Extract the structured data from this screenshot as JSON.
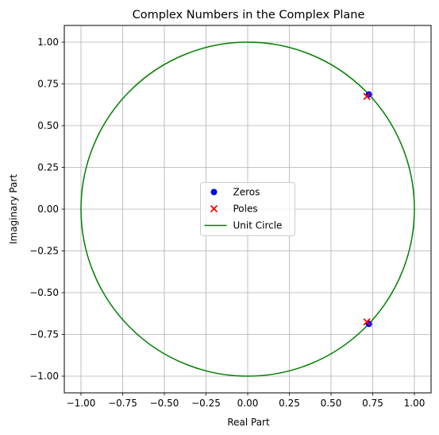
{
  "chart_data": {
    "type": "scatter",
    "title": "Complex Numbers in the Complex Plane",
    "xlabel": "Real Part",
    "ylabel": "Imaginary Part",
    "xlim": [
      -1.1,
      1.1
    ],
    "ylim": [
      -1.1,
      1.1
    ],
    "xticks": [
      -1.0,
      -0.75,
      -0.5,
      -0.25,
      0.0,
      0.25,
      0.5,
      0.75,
      1.0
    ],
    "yticks": [
      -1.0,
      -0.75,
      -0.5,
      -0.25,
      0.0,
      0.25,
      0.5,
      0.75,
      1.0
    ],
    "xtick_labels": [
      "−1.00",
      "−0.75",
      "−0.50",
      "−0.25",
      "0.00",
      "0.25",
      "0.50",
      "0.75",
      "1.00"
    ],
    "ytick_labels": [
      "−1.00",
      "−0.75",
      "−0.50",
      "−0.25",
      "0.00",
      "0.25",
      "0.50",
      "0.75",
      "1.00"
    ],
    "grid": true,
    "legend_position": "center",
    "series": [
      {
        "name": "Zeros",
        "kind": "scatter",
        "marker": "circle",
        "color": "#0000ff",
        "points": [
          {
            "x": 0.727,
            "y": 0.687
          },
          {
            "x": 0.727,
            "y": -0.687
          }
        ]
      },
      {
        "name": "Poles",
        "kind": "scatter",
        "marker": "x",
        "color": "#ff0000",
        "points": [
          {
            "x": 0.715,
            "y": 0.675
          },
          {
            "x": 0.715,
            "y": -0.675
          }
        ]
      },
      {
        "name": "Unit Circle",
        "kind": "line",
        "color": "#008000",
        "shape": "circle",
        "center": {
          "x": 0,
          "y": 0
        },
        "radius": 1
      }
    ]
  }
}
